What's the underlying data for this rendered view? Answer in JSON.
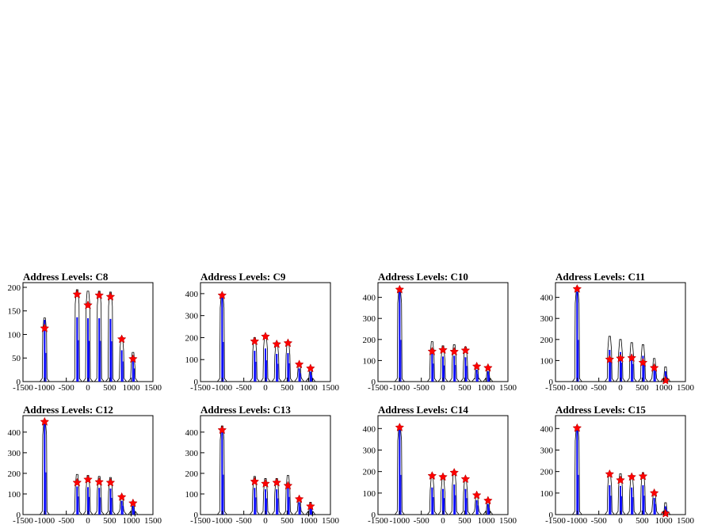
{
  "colors": {
    "histogram": "#0000ff",
    "outline": "#000000",
    "marker": "#ff0000",
    "background": "#ffffff"
  },
  "chart_data": [
    {
      "type": "histogram",
      "title": "Address Levels: C8",
      "xlim": [
        -1500,
        1500
      ],
      "ylim": [
        0,
        210
      ],
      "x_ticks": [
        "-1500",
        "-1000",
        "-500",
        "0",
        "500",
        "1000",
        "1500"
      ],
      "y_ticks": [
        "0",
        "50",
        "100",
        "150",
        "200"
      ],
      "y_tick_values": [
        0,
        50,
        100,
        150,
        200
      ],
      "peak_markers": [
        {
          "x": -1000,
          "y": 113
        },
        {
          "x": -250,
          "y": 185
        },
        {
          "x": 0,
          "y": 162
        },
        {
          "x": 260,
          "y": 183
        },
        {
          "x": 520,
          "y": 180
        },
        {
          "x": 780,
          "y": 90
        },
        {
          "x": 1040,
          "y": 48
        }
      ],
      "spikes": [
        {
          "x": -1000,
          "h": 135
        },
        {
          "x": -250,
          "h": 195
        },
        {
          "x": 0,
          "h": 192
        },
        {
          "x": 260,
          "h": 192
        },
        {
          "x": 520,
          "h": 190
        },
        {
          "x": 780,
          "h": 95
        },
        {
          "x": 1040,
          "h": 62
        }
      ]
    },
    {
      "type": "histogram",
      "title": "Address Levels: C9",
      "xlim": [
        -1500,
        1500
      ],
      "ylim": [
        0,
        450
      ],
      "x_ticks": [
        "-1500",
        "-1000",
        "-500",
        "0",
        "500",
        "1000",
        "1500"
      ],
      "y_ticks": [
        "0",
        "100",
        "200",
        "300",
        "400"
      ],
      "y_tick_values": [
        0,
        100,
        200,
        300,
        400
      ],
      "peak_markers": [
        {
          "x": -1000,
          "y": 392
        },
        {
          "x": -250,
          "y": 183
        },
        {
          "x": 0,
          "y": 205
        },
        {
          "x": 260,
          "y": 170
        },
        {
          "x": 520,
          "y": 175
        },
        {
          "x": 780,
          "y": 78
        },
        {
          "x": 1040,
          "y": 60
        }
      ],
      "spikes": [
        {
          "x": -1000,
          "h": 400
        },
        {
          "x": -250,
          "h": 200
        },
        {
          "x": 0,
          "h": 215
        },
        {
          "x": 260,
          "h": 180
        },
        {
          "x": 520,
          "h": 185
        },
        {
          "x": 780,
          "h": 85
        },
        {
          "x": 1040,
          "h": 65
        }
      ]
    },
    {
      "type": "histogram",
      "title": "Address Levels: C10",
      "xlim": [
        -1500,
        1500
      ],
      "ylim": [
        0,
        470
      ],
      "x_ticks": [
        "-1500",
        "-1000",
        "-500",
        "0",
        "500",
        "1000",
        "1500"
      ],
      "y_ticks": [
        "0",
        "100",
        "200",
        "300",
        "400"
      ],
      "y_tick_values": [
        0,
        100,
        200,
        300,
        400
      ],
      "peak_markers": [
        {
          "x": -1000,
          "y": 437
        },
        {
          "x": -250,
          "y": 143
        },
        {
          "x": 0,
          "y": 150
        },
        {
          "x": 260,
          "y": 142
        },
        {
          "x": 520,
          "y": 148
        },
        {
          "x": 780,
          "y": 72
        },
        {
          "x": 1040,
          "y": 65
        }
      ],
      "spikes": [
        {
          "x": -1000,
          "h": 440
        },
        {
          "x": -250,
          "h": 190
        },
        {
          "x": 0,
          "h": 170
        },
        {
          "x": 260,
          "h": 175
        },
        {
          "x": 520,
          "h": 165
        },
        {
          "x": 780,
          "h": 80
        },
        {
          "x": 1040,
          "h": 70
        }
      ]
    },
    {
      "type": "histogram",
      "title": "Address Levels: C11",
      "xlim": [
        -1500,
        1500
      ],
      "ylim": [
        0,
        470
      ],
      "x_ticks": [
        "-1500",
        "-1000",
        "-500",
        "0",
        "500",
        "1000",
        "1500"
      ],
      "y_ticks": [
        "0",
        "100",
        "200",
        "300",
        "400"
      ],
      "y_tick_values": [
        0,
        100,
        200,
        300,
        400
      ],
      "peak_markers": [
        {
          "x": -1000,
          "y": 440
        },
        {
          "x": -250,
          "y": 105
        },
        {
          "x": 0,
          "y": 110
        },
        {
          "x": 260,
          "y": 112
        },
        {
          "x": 520,
          "y": 90
        },
        {
          "x": 780,
          "y": 65
        },
        {
          "x": 1040,
          "y": 5
        }
      ],
      "spikes": [
        {
          "x": -1000,
          "h": 440
        },
        {
          "x": -250,
          "h": 215
        },
        {
          "x": 0,
          "h": 200
        },
        {
          "x": 260,
          "h": 185
        },
        {
          "x": 520,
          "h": 175
        },
        {
          "x": 780,
          "h": 110
        },
        {
          "x": 1040,
          "h": 70
        }
      ]
    },
    {
      "type": "histogram",
      "title": "Address Levels: C12",
      "xlim": [
        -1500,
        1500
      ],
      "ylim": [
        0,
        480
      ],
      "x_ticks": [
        "-1500",
        "-1000",
        "-500",
        "0",
        "500",
        "1000",
        "1500"
      ],
      "y_ticks": [
        "0",
        "100",
        "200",
        "300",
        "400"
      ],
      "y_tick_values": [
        0,
        100,
        200,
        300,
        400
      ],
      "peak_markers": [
        {
          "x": -1000,
          "y": 450
        },
        {
          "x": -250,
          "y": 155
        },
        {
          "x": 0,
          "y": 170
        },
        {
          "x": 260,
          "y": 158
        },
        {
          "x": 520,
          "y": 155
        },
        {
          "x": 780,
          "y": 85
        },
        {
          "x": 1040,
          "y": 55
        }
      ],
      "spikes": [
        {
          "x": -1000,
          "h": 455
        },
        {
          "x": -250,
          "h": 195
        },
        {
          "x": 0,
          "h": 190
        },
        {
          "x": 260,
          "h": 185
        },
        {
          "x": 520,
          "h": 180
        },
        {
          "x": 780,
          "h": 95
        },
        {
          "x": 1040,
          "h": 60
        }
      ]
    },
    {
      "type": "histogram",
      "title": "Address Levels: C13",
      "xlim": [
        -1500,
        1500
      ],
      "ylim": [
        0,
        480
      ],
      "x_ticks": [
        "-1500",
        "-1000",
        "-500",
        "0",
        "500",
        "1000",
        "1500"
      ],
      "y_ticks": [
        "0",
        "100",
        "200",
        "300",
        "400"
      ],
      "y_tick_values": [
        0,
        100,
        200,
        300,
        400
      ],
      "peak_markers": [
        {
          "x": -1000,
          "y": 410
        },
        {
          "x": -250,
          "y": 160
        },
        {
          "x": 0,
          "y": 150
        },
        {
          "x": 260,
          "y": 155
        },
        {
          "x": 520,
          "y": 140
        },
        {
          "x": 780,
          "y": 75
        },
        {
          "x": 1040,
          "y": 40
        }
      ],
      "spikes": [
        {
          "x": -1000,
          "h": 430
        },
        {
          "x": -250,
          "h": 185
        },
        {
          "x": 0,
          "h": 175
        },
        {
          "x": 260,
          "h": 175
        },
        {
          "x": 520,
          "h": 190
        },
        {
          "x": 780,
          "h": 85
        },
        {
          "x": 1040,
          "h": 60
        }
      ]
    },
    {
      "type": "histogram",
      "title": "Address Levels: C14",
      "xlim": [
        -1500,
        1500
      ],
      "ylim": [
        0,
        460
      ],
      "x_ticks": [
        "-1500",
        "-1000",
        "-500",
        "0",
        "500",
        "1000",
        "1500"
      ],
      "y_ticks": [
        "0",
        "100",
        "200",
        "300",
        "400"
      ],
      "y_tick_values": [
        0,
        100,
        200,
        300,
        400
      ],
      "peak_markers": [
        {
          "x": -1000,
          "y": 405
        },
        {
          "x": -250,
          "y": 180
        },
        {
          "x": 0,
          "y": 175
        },
        {
          "x": 260,
          "y": 195
        },
        {
          "x": 520,
          "y": 165
        },
        {
          "x": 780,
          "y": 90
        },
        {
          "x": 1040,
          "y": 65
        }
      ],
      "spikes": [
        {
          "x": -1000,
          "h": 410
        },
        {
          "x": -250,
          "h": 180
        },
        {
          "x": 0,
          "h": 170
        },
        {
          "x": 260,
          "h": 200
        },
        {
          "x": 520,
          "h": 170
        },
        {
          "x": 780,
          "h": 95
        },
        {
          "x": 1040,
          "h": 70
        }
      ]
    },
    {
      "type": "histogram",
      "title": "Address Levels: C15",
      "xlim": [
        -1500,
        1500
      ],
      "ylim": [
        0,
        460
      ],
      "x_ticks": [
        "-1500",
        "-1000",
        "-500",
        "0",
        "500",
        "1000",
        "1500"
      ],
      "y_ticks": [
        "0",
        "100",
        "200",
        "300",
        "400"
      ],
      "y_tick_values": [
        0,
        100,
        200,
        300,
        400
      ],
      "peak_markers": [
        {
          "x": -1000,
          "y": 402
        },
        {
          "x": -250,
          "y": 188
        },
        {
          "x": 0,
          "y": 160
        },
        {
          "x": 260,
          "y": 175
        },
        {
          "x": 520,
          "y": 178
        },
        {
          "x": 780,
          "y": 100
        },
        {
          "x": 1040,
          "y": 5
        }
      ],
      "spikes": [
        {
          "x": -1000,
          "h": 410
        },
        {
          "x": -250,
          "h": 195
        },
        {
          "x": 0,
          "h": 190
        },
        {
          "x": 260,
          "h": 180
        },
        {
          "x": 520,
          "h": 195
        },
        {
          "x": 780,
          "h": 110
        },
        {
          "x": 1040,
          "h": 55
        }
      ]
    }
  ]
}
